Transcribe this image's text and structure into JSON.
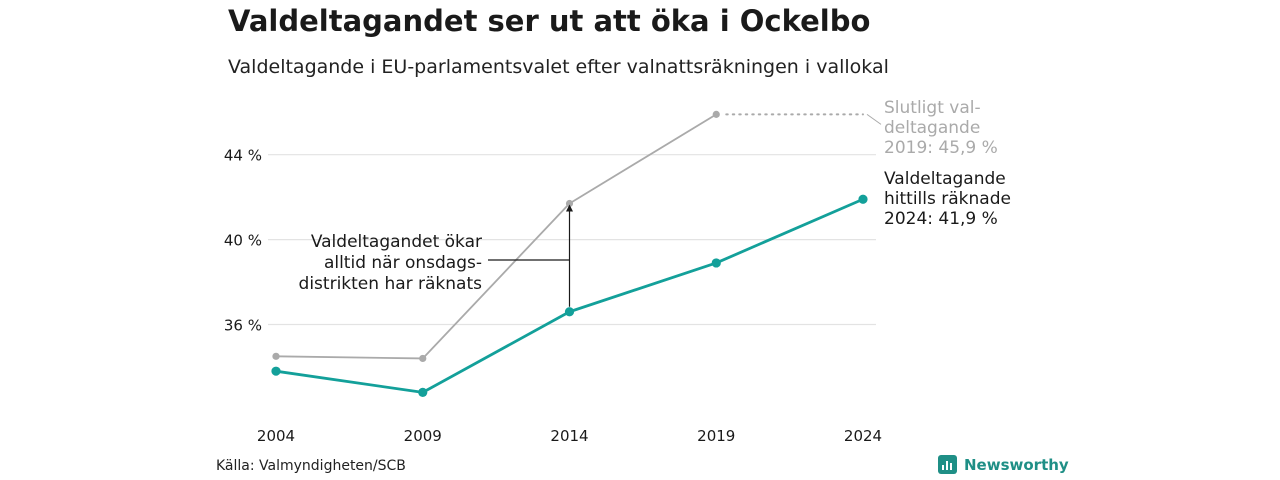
{
  "title": "Valdeltagandet ser ut att öka i Ockelbo",
  "subtitle": "Valdeltagande i EU-parlamentsvalet efter valnattsräkningen i vallokal",
  "source": "Källa: Valmyndigheten/SCB",
  "brand": {
    "name": "Newsworthy",
    "icon": "newsworthy-logo-icon"
  },
  "colors": {
    "final": "#aaaaaa",
    "counted": "#13a09a",
    "grid": "#e3e3e3",
    "annotation": "#1a1a1a"
  },
  "chart_data": {
    "type": "line",
    "x": [
      "2004",
      "2009",
      "2014",
      "2019",
      "2024"
    ],
    "ylim": [
      31.5,
      46.2
    ],
    "yticks": [
      36,
      40,
      44
    ],
    "ytick_labels": [
      "36 %",
      "40 %",
      "44 %"
    ],
    "grid": true,
    "series": [
      {
        "key": "final",
        "values": [
          34.5,
          34.4,
          41.7,
          45.9,
          null
        ]
      },
      {
        "key": "counted",
        "values": [
          33.8,
          32.8,
          36.6,
          38.9,
          41.9
        ]
      }
    ],
    "labels": {
      "final": [
        "Slutligt val-",
        "deltagande",
        "2019: 45,9 %"
      ],
      "counted": [
        "Valdeltagande",
        "hittills räknade",
        "2024: 41,9 %"
      ]
    },
    "annotation": {
      "lines": [
        "Valdeltagandet ökar",
        "alltid när onsdags-",
        "distrikten har räknats"
      ],
      "x": "2014",
      "from": 36.6,
      "to": 41.7
    }
  }
}
